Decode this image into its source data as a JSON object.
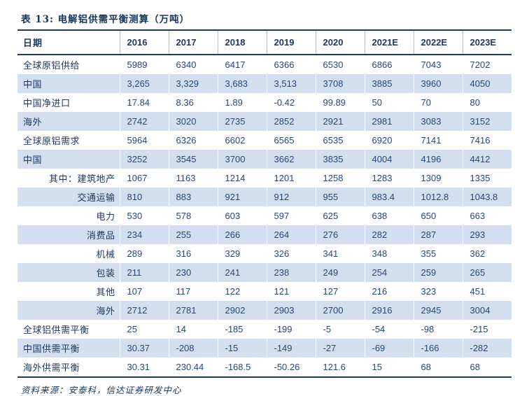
{
  "title": "表 13:  电解铝供需平衡测算（万吨）",
  "source": "资料来源：安泰科，信达证券研发中心",
  "colors": {
    "navy_border": "#1f3864",
    "title_text": "#17365d",
    "cell_text": "#26477e",
    "row_stripe": "#d3dfee"
  },
  "table": {
    "header": [
      "日期",
      "2016",
      "2017",
      "2018",
      "2019",
      "2020",
      "2021E",
      "2022E",
      "2023E"
    ],
    "rows": [
      {
        "label": "全球原铝供给",
        "sub": false,
        "values": [
          "5989",
          "6340",
          "6417",
          "6366",
          "6530",
          "6866",
          "7043",
          "7202"
        ]
      },
      {
        "label": "中国",
        "sub": false,
        "values": [
          "3,265",
          "3,329",
          "3,683",
          "3,513",
          "3708",
          "3885",
          "3960",
          "4050"
        ]
      },
      {
        "label": "中国净进口",
        "sub": false,
        "values": [
          "17.84",
          "8.36",
          "1.89",
          "-0.42",
          "99.89",
          "50",
          "70",
          "80"
        ]
      },
      {
        "label": "海外",
        "sub": false,
        "values": [
          "2742",
          "3020",
          "2735",
          "2852",
          "2921",
          "2981",
          "3083",
          "3152"
        ]
      },
      {
        "label": "全球原铝需求",
        "sub": false,
        "values": [
          "5964",
          "6326",
          "6602",
          "6565",
          "6535",
          "6920",
          "7141",
          "7416"
        ]
      },
      {
        "label": "中国",
        "sub": false,
        "values": [
          "3252",
          "3545",
          "3700",
          "3662",
          "3835",
          "4004",
          "4196",
          "4412"
        ]
      },
      {
        "label": "其中：建筑地产",
        "sub": true,
        "values": [
          "1067",
          "1163",
          "1214",
          "1201",
          "1258",
          "1283",
          "1309",
          "1335"
        ]
      },
      {
        "label": "交通运输",
        "sub": true,
        "values": [
          "810",
          "883",
          "921",
          "912",
          "955",
          "983.4",
          "1012.8",
          "1043.8"
        ]
      },
      {
        "label": "电力",
        "sub": true,
        "values": [
          "530",
          "578",
          "603",
          "597",
          "625",
          "638",
          "650",
          "663"
        ]
      },
      {
        "label": "消费品",
        "sub": true,
        "values": [
          "234",
          "255",
          "266",
          "264",
          "276",
          "282",
          "287",
          "293"
        ]
      },
      {
        "label": "机械",
        "sub": true,
        "values": [
          "289",
          "316",
          "329",
          "326",
          "341",
          "348",
          "355",
          "362"
        ]
      },
      {
        "label": "包装",
        "sub": true,
        "values": [
          "211",
          "230",
          "241",
          "238",
          "249",
          "254",
          "259",
          "265"
        ]
      },
      {
        "label": "其他",
        "sub": true,
        "values": [
          "107",
          "117",
          "122",
          "121",
          "127",
          "216",
          "323",
          "451"
        ]
      },
      {
        "label": "海外",
        "sub": true,
        "values": [
          "2712",
          "2781",
          "2902",
          "2903",
          "2700",
          "2916",
          "2945",
          "3004"
        ]
      },
      {
        "label": "全球铝供需平衡",
        "sub": false,
        "values": [
          "25",
          "14",
          "-185",
          "-199",
          "-5",
          "-54",
          "-98",
          "-215"
        ]
      },
      {
        "label": "中国供需平衡",
        "sub": false,
        "values": [
          "30.37",
          "-208",
          "-15",
          "-149",
          "-27",
          "-69",
          "-166",
          "-282"
        ]
      },
      {
        "label": "海外供需平衡",
        "sub": false,
        "values": [
          "30.31",
          "230.44",
          "-168.5",
          "-50.26",
          "121.6",
          "15",
          "68",
          "68"
        ]
      }
    ]
  }
}
